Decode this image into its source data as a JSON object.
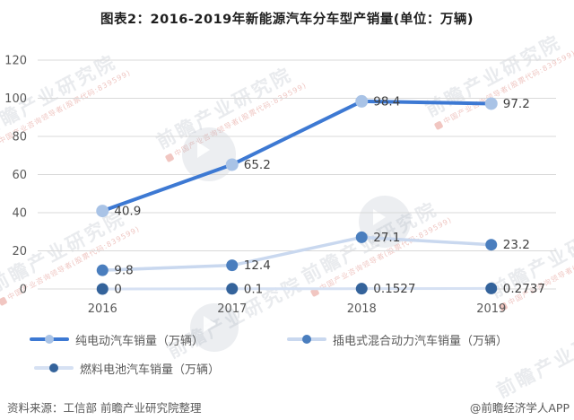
{
  "title": "图表2：2016-2019年新能源汽车分车型产销量(单位：万辆)",
  "chart_data": {
    "type": "line",
    "categories": [
      "2016",
      "2017",
      "2018",
      "2019"
    ],
    "series": [
      {
        "name": "纯电动汽车销量（万辆）",
        "values": [
          40.9,
          65.2,
          98.4,
          97.2
        ],
        "labels": [
          "40.9",
          "65.2",
          "98.4",
          "97.2"
        ],
        "line_color": "#3d79d3",
        "marker_color": "#a9c3e6",
        "line_width": 4,
        "marker_radius": 7
      },
      {
        "name": "插电式混合动力汽车销量（万辆）",
        "values": [
          9.8,
          12.4,
          27.1,
          23.2
        ],
        "labels": [
          "9.8",
          "12.4",
          "27.1",
          "23.2"
        ],
        "line_color": "#c9d8ef",
        "marker_color": "#4a7ebe",
        "line_width": 3.5,
        "marker_radius": 6.5
      },
      {
        "name": "燃料电池汽车销量（万辆）",
        "values": [
          0,
          0.1,
          0.1527,
          0.2737
        ],
        "labels": [
          "0",
          "0.1",
          "0.1527",
          "0.2737"
        ],
        "line_color": "#d6e1f3",
        "marker_color": "#34639b",
        "line_width": 3,
        "marker_radius": 6.5
      }
    ],
    "ylim": [
      0,
      120
    ],
    "yticks": [
      0,
      20,
      40,
      60,
      80,
      100,
      120
    ],
    "grid": true,
    "legend_position": "bottom",
    "xlabel": "",
    "ylabel": ""
  },
  "colors": {
    "grid": "#d9d9d9",
    "axis_text": "#595959",
    "data_label_text": "#3f3f3f"
  },
  "footer": {
    "source": "资料来源：工信部 前瞻产业研究院整理",
    "credit": "@前瞻经济学人APP"
  },
  "watermark": {
    "main": "前瞻产业研究院",
    "sub": "中国产业咨询领导者(股票代码:839599)"
  }
}
